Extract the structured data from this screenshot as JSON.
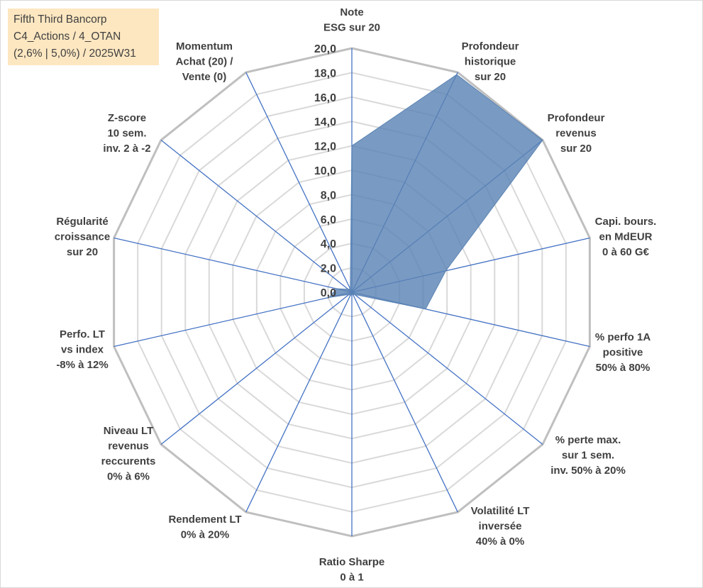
{
  "title_lines": [
    "Fifth Third Bancorp",
    "C4_Actions / 4_OTAN",
    "(2,6% | 5,0%) / 2025W31"
  ],
  "colors": {
    "grid_outer": "#bfbfbf",
    "grid_inner": "#d9d9d9",
    "spoke": "#4472c4",
    "fill": "#5b84b4",
    "fill_opacity": 0.82,
    "title_bg": "#fde7c1",
    "text": "#404040"
  },
  "chart_data": {
    "type": "radar",
    "r_range": [
      0,
      20
    ],
    "r_step": 2,
    "tick_labels": [
      "0,0",
      "2,0",
      "4,0",
      "6,0",
      "8,0",
      "10,0",
      "12,0",
      "14,0",
      "16,0",
      "18,0",
      "20,0"
    ],
    "axes": [
      {
        "label": [
          "Note",
          "ESG sur 20"
        ],
        "value": 12.0
      },
      {
        "label": [
          "Profondeur",
          "historique",
          "sur 20"
        ],
        "value": 19.8
      },
      {
        "label": [
          "Profondeur",
          "revenus",
          "sur 20"
        ],
        "value": 20.0
      },
      {
        "label": [
          "Capi. bours.",
          "en MdEUR",
          "0 à 60 G€"
        ],
        "value": 7.9
      },
      {
        "label": [
          "% perfo 1A",
          "positive",
          "50% à 80%"
        ],
        "value": 6.2
      },
      {
        "label": [
          "% perte max.",
          "sur 1 sem.",
          "inv. 50% à 20%"
        ],
        "value": 0.3
      },
      {
        "label": [
          "Volatilité LT",
          "inversée",
          "40% à 0%"
        ],
        "value": 0.2
      },
      {
        "label": [
          "Ratio Sharpe",
          "0 à 1"
        ],
        "value": 0.2
      },
      {
        "label": [
          "Rendement LT",
          "0% à 20%"
        ],
        "value": 0.3
      },
      {
        "label": [
          "Niveau LT",
          "revenus",
          "reccurents",
          "0% à 6%"
        ],
        "value": 0.3
      },
      {
        "label": [
          "Perfo. LT",
          "vs index",
          "-8% à 12%"
        ],
        "value": 1.9
      },
      {
        "label": [
          "Régularité",
          "croissance",
          "sur 20"
        ],
        "value": 1.3
      },
      {
        "label": [
          "Z-score",
          "10 sem.",
          "inv. 2 à -2"
        ],
        "value": 0.4
      },
      {
        "label": [
          "Momentum",
          "Achat (20) /",
          "Vente (0)"
        ],
        "value": 0.3
      }
    ]
  }
}
